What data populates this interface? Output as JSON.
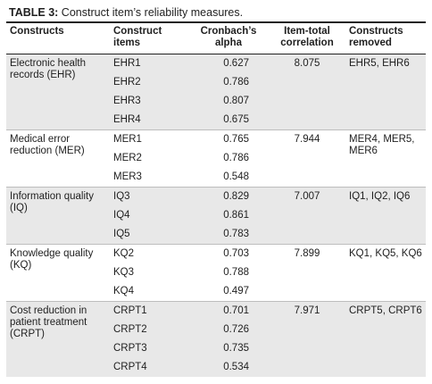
{
  "caption": {
    "label": "TABLE 3:",
    "text": " Construct item’s reliability measures."
  },
  "headers": {
    "constructs": "Constructs",
    "items": "Construct items",
    "alpha": "Cronbach’s alpha",
    "itc": "Item-total correlation",
    "removed": "Constructs removed"
  },
  "groups": [
    {
      "construct": "Electronic health records (EHR)",
      "itc": "8.075",
      "removed": "EHR5, EHR6",
      "rows": [
        {
          "item": "EHR1",
          "alpha": "0.627"
        },
        {
          "item": "EHR2",
          "alpha": "0.786"
        },
        {
          "item": "EHR3",
          "alpha": "0.807"
        },
        {
          "item": "EHR4",
          "alpha": "0.675"
        }
      ]
    },
    {
      "construct": "Medical error reduction (MER)",
      "itc": "7.944",
      "removed": "MER4, MER5, MER6",
      "rows": [
        {
          "item": "MER1",
          "alpha": "0.765"
        },
        {
          "item": "MER2",
          "alpha": "0.786"
        },
        {
          "item": "MER3",
          "alpha": "0.548"
        }
      ]
    },
    {
      "construct": "Information quality (IQ)",
      "itc": "7.007",
      "removed": "IQ1, IQ2, IQ6",
      "rows": [
        {
          "item": "IQ3",
          "alpha": "0.829"
        },
        {
          "item": "IQ4",
          "alpha": "0.861"
        },
        {
          "item": "IQ5",
          "alpha": "0.783"
        }
      ]
    },
    {
      "construct": "Knowledge quality (KQ)",
      "itc": "7.899",
      "removed": "KQ1, KQ5, KQ6",
      "rows": [
        {
          "item": "KQ2",
          "alpha": "0.703"
        },
        {
          "item": "KQ3",
          "alpha": "0.788"
        },
        {
          "item": "KQ4",
          "alpha": "0.497"
        }
      ]
    },
    {
      "construct": "Cost reduction in patient treatment (CRPT)",
      "itc": "7.971",
      "removed": "CRPT5, CRPT6",
      "rows": [
        {
          "item": "CRPT1",
          "alpha": "0.701"
        },
        {
          "item": "CRPT2",
          "alpha": "0.726"
        },
        {
          "item": "CRPT3",
          "alpha": "0.735"
        },
        {
          "item": "CRPT4",
          "alpha": "0.534"
        }
      ]
    }
  ]
}
